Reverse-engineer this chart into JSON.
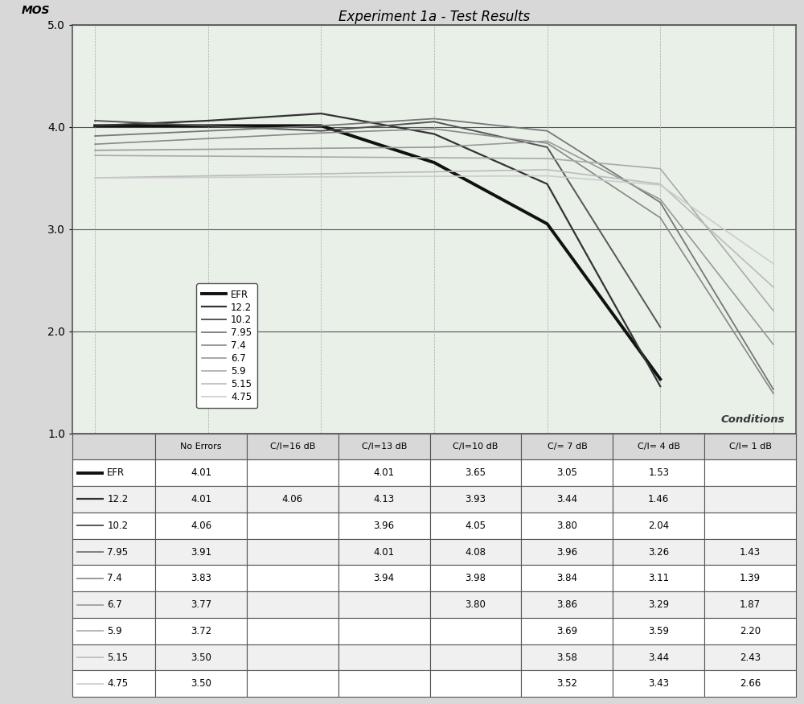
{
  "title": "Experiment 1a - Test Results",
  "ylabel": "MOS",
  "conditions_label": "Conditions",
  "ylim": [
    1.0,
    5.0
  ],
  "yticks": [
    1.0,
    2.0,
    3.0,
    4.0,
    5.0
  ],
  "series": [
    {
      "name": "EFR",
      "color": "#111111",
      "linewidth": 2.8,
      "data": {
        "0": 4.01,
        "2": 4.01,
        "3": 3.65,
        "4": 3.05,
        "5": 1.53
      }
    },
    {
      "name": "12.2",
      "color": "#333333",
      "linewidth": 1.6,
      "data": {
        "0": 4.01,
        "1": 4.06,
        "2": 4.13,
        "3": 3.93,
        "4": 3.44,
        "5": 1.46
      }
    },
    {
      "name": "10.2",
      "color": "#555555",
      "linewidth": 1.4,
      "data": {
        "0": 4.06,
        "2": 3.96,
        "3": 4.05,
        "4": 3.8,
        "5": 2.04
      }
    },
    {
      "name": "7.95",
      "color": "#777777",
      "linewidth": 1.3,
      "data": {
        "0": 3.91,
        "2": 4.01,
        "3": 4.08,
        "4": 3.96,
        "5": 3.26,
        "6": 1.43
      }
    },
    {
      "name": "7.4",
      "color": "#888888",
      "linewidth": 1.2,
      "data": {
        "0": 3.83,
        "2": 3.94,
        "3": 3.98,
        "4": 3.84,
        "5": 3.11,
        "6": 1.39
      }
    },
    {
      "name": "6.7",
      "color": "#999999",
      "linewidth": 1.2,
      "data": {
        "0": 3.77,
        "3": 3.8,
        "4": 3.86,
        "5": 3.29,
        "6": 1.87
      }
    },
    {
      "name": "5.9",
      "color": "#aaaaaa",
      "linewidth": 1.2,
      "data": {
        "0": 3.72,
        "4": 3.69,
        "5": 3.59,
        "6": 2.2
      }
    },
    {
      "name": "5.15",
      "color": "#bbbbbb",
      "linewidth": 1.2,
      "data": {
        "0": 3.5,
        "4": 3.58,
        "5": 3.44,
        "6": 2.43
      }
    },
    {
      "name": "4.75",
      "color": "#cccccc",
      "linewidth": 1.2,
      "data": {
        "0": 3.5,
        "4": 3.52,
        "5": 3.43,
        "6": 2.66
      }
    }
  ],
  "table_header": [
    "No Errors",
    "C/I=16 dB",
    "C/I=13 dB",
    "C/I=10 dB",
    "C/= 7 dB",
    "C/I= 4 dB",
    "C/I= 1 dB"
  ],
  "table_data": [
    [
      "EFR",
      "4.01",
      "",
      "4.01",
      "3.65",
      "3.05",
      "1.53",
      ""
    ],
    [
      "12.2",
      "4.01",
      "4.06",
      "4.13",
      "3.93",
      "3.44",
      "1.46",
      ""
    ],
    [
      "10.2",
      "4.06",
      "",
      "3.96",
      "4.05",
      "3.80",
      "2.04",
      ""
    ],
    [
      "7.95",
      "3.91",
      "",
      "4.01",
      "4.08",
      "3.96",
      "3.26",
      "1.43"
    ],
    [
      "7.4",
      "3.83",
      "",
      "3.94",
      "3.98",
      "3.84",
      "3.11",
      "1.39"
    ],
    [
      "6.7",
      "3.77",
      "",
      "",
      "3.80",
      "3.86",
      "3.29",
      "1.87"
    ],
    [
      "5.9",
      "3.72",
      "",
      "",
      "",
      "3.69",
      "3.59",
      "2.20"
    ],
    [
      "5.15",
      "3.50",
      "",
      "",
      "",
      "3.58",
      "3.44",
      "2.43"
    ],
    [
      "4.75",
      "3.50",
      "",
      "",
      "",
      "3.52",
      "3.43",
      "2.66"
    ]
  ],
  "outer_bg": "#d8d8d8",
  "plot_bg": "#e8f0e8",
  "table_bg": "#f0f0f0",
  "header_bg": "#d8d8d8",
  "border_color": "#555555"
}
